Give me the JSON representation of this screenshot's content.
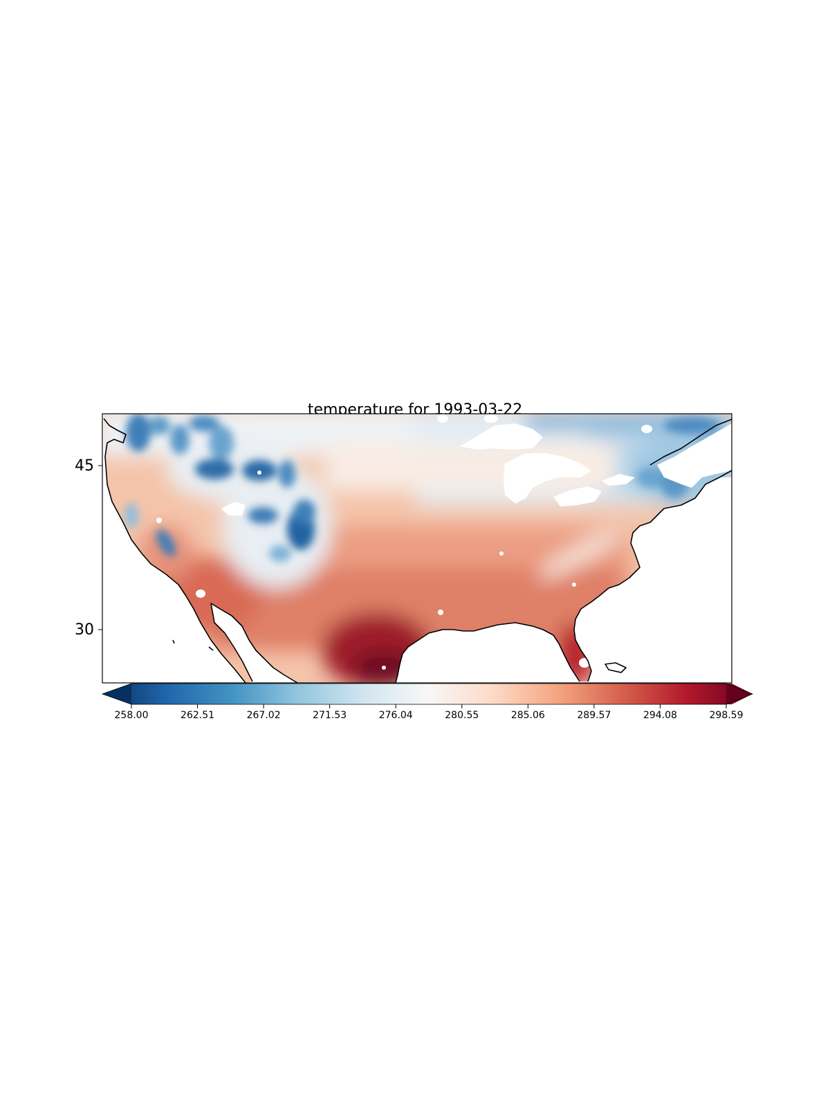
{
  "map": {
    "title": "temperature for 1993-03-22",
    "projection": "PlateCarree",
    "colormap": "RdBu_r",
    "extent_lon": [
      -125,
      -66
    ],
    "extent_lat": [
      25,
      50
    ],
    "yticks": [
      "45",
      "30"
    ],
    "missing_color": "#ffffff",
    "coastline_color": "#000000"
  },
  "colorbar": {
    "orientation": "horizontal",
    "extend": "both",
    "ticks": [
      "258.00",
      "262.51",
      "267.02",
      "271.53",
      "276.04",
      "280.55",
      "285.06",
      "289.57",
      "294.08",
      "298.59"
    ],
    "vmin": 258.0,
    "vmax": 298.59,
    "colors": [
      "#053061",
      "#2166ac",
      "#4393c3",
      "#92c5de",
      "#d1e5f0",
      "#f7f7f7",
      "#fddbc7",
      "#f4a582",
      "#d6604d",
      "#b2182b",
      "#67001f"
    ]
  }
}
